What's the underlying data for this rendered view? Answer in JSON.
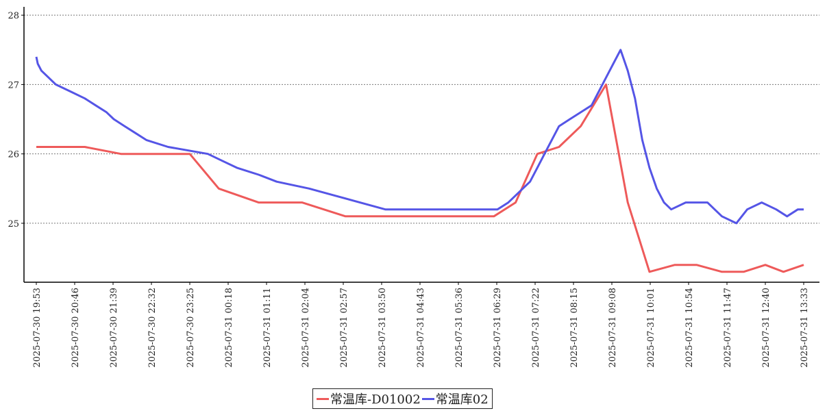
{
  "chart_data": {
    "type": "line",
    "ylim": [
      24.15,
      28.12
    ],
    "yticks": [
      25,
      26,
      27,
      28
    ],
    "grid": "horizontal-dotted",
    "legend_position": "bottom-center",
    "x_tick_labels": [
      "2025-07-30 19:53",
      "2025-07-30 20:46",
      "2025-07-30 21:39",
      "2025-07-30 22:32",
      "2025-07-30 23:25",
      "2025-07-31 00:18",
      "2025-07-31 01:11",
      "2025-07-31 02:04",
      "2025-07-31 02:57",
      "2025-07-31 03:50",
      "2025-07-31 04:43",
      "2025-07-31 05:36",
      "2025-07-31 06:29",
      "2025-07-31 07:22",
      "2025-07-31 08:15",
      "2025-07-31 09:08",
      "2025-07-31 10:01",
      "2025-07-31 10:54",
      "2025-07-31 11:47",
      "2025-07-31 12:40",
      "2025-07-31 13:33"
    ],
    "series": [
      {
        "name": "常温库-D01002",
        "color": "#ee5a5a",
        "points": [
          [
            "2025-07-30 19:53",
            26.1
          ],
          [
            "2025-07-30 21:00",
            26.1
          ],
          [
            "2025-07-30 21:50",
            26.0
          ],
          [
            "2025-07-30 23:25",
            26.0
          ],
          [
            "2025-07-31 00:05",
            25.5
          ],
          [
            "2025-07-31 01:00",
            25.3
          ],
          [
            "2025-07-31 02:00",
            25.3
          ],
          [
            "2025-07-31 03:00",
            25.1
          ],
          [
            "2025-07-31 06:25",
            25.1
          ],
          [
            "2025-07-31 06:55",
            25.3
          ],
          [
            "2025-07-31 07:25",
            26.0
          ],
          [
            "2025-07-31 07:55",
            26.1
          ],
          [
            "2025-07-31 08:25",
            26.4
          ],
          [
            "2025-07-31 09:00",
            27.0
          ],
          [
            "2025-07-31 09:30",
            25.3
          ],
          [
            "2025-07-31 10:00",
            24.3
          ],
          [
            "2025-07-31 10:35",
            24.4
          ],
          [
            "2025-07-31 11:05",
            24.4
          ],
          [
            "2025-07-31 11:40",
            24.3
          ],
          [
            "2025-07-31 12:10",
            24.3
          ],
          [
            "2025-07-31 12:40",
            24.4
          ],
          [
            "2025-07-31 13:05",
            24.3
          ],
          [
            "2025-07-31 13:33",
            24.4
          ]
        ]
      },
      {
        "name": "常温库02",
        "color": "#5555e6",
        "points": [
          [
            "2025-07-30 19:53",
            27.4
          ],
          [
            "2025-07-30 19:55",
            27.3
          ],
          [
            "2025-07-30 20:00",
            27.2
          ],
          [
            "2025-07-30 20:10",
            27.1
          ],
          [
            "2025-07-30 20:20",
            27.0
          ],
          [
            "2025-07-30 20:40",
            26.9
          ],
          [
            "2025-07-30 21:00",
            26.8
          ],
          [
            "2025-07-30 21:15",
            26.7
          ],
          [
            "2025-07-30 21:30",
            26.6
          ],
          [
            "2025-07-30 21:40",
            26.5
          ],
          [
            "2025-07-30 21:55",
            26.4
          ],
          [
            "2025-07-30 22:10",
            26.3
          ],
          [
            "2025-07-30 22:25",
            26.2
          ],
          [
            "2025-07-30 22:55",
            26.1
          ],
          [
            "2025-07-30 23:50",
            26.0
          ],
          [
            "2025-07-31 00:10",
            25.9
          ],
          [
            "2025-07-31 00:30",
            25.8
          ],
          [
            "2025-07-31 01:00",
            25.7
          ],
          [
            "2025-07-31 01:25",
            25.6
          ],
          [
            "2025-07-31 02:10",
            25.5
          ],
          [
            "2025-07-31 02:45",
            25.4
          ],
          [
            "2025-07-31 03:20",
            25.3
          ],
          [
            "2025-07-31 03:55",
            25.2
          ],
          [
            "2025-07-31 06:30",
            25.2
          ],
          [
            "2025-07-31 06:45",
            25.3
          ],
          [
            "2025-07-31 06:55",
            25.4
          ],
          [
            "2025-07-31 07:05",
            25.5
          ],
          [
            "2025-07-31 07:15",
            25.6
          ],
          [
            "2025-07-31 07:25",
            25.8
          ],
          [
            "2025-07-31 07:35",
            26.0
          ],
          [
            "2025-07-31 07:45",
            26.2
          ],
          [
            "2025-07-31 07:55",
            26.4
          ],
          [
            "2025-07-31 08:10",
            26.5
          ],
          [
            "2025-07-31 08:25",
            26.6
          ],
          [
            "2025-07-31 08:40",
            26.7
          ],
          [
            "2025-07-31 08:50",
            26.9
          ],
          [
            "2025-07-31 09:00",
            27.1
          ],
          [
            "2025-07-31 09:10",
            27.3
          ],
          [
            "2025-07-31 09:20",
            27.5
          ],
          [
            "2025-07-31 09:30",
            27.2
          ],
          [
            "2025-07-31 09:40",
            26.8
          ],
          [
            "2025-07-31 09:50",
            26.2
          ],
          [
            "2025-07-31 10:00",
            25.8
          ],
          [
            "2025-07-31 10:10",
            25.5
          ],
          [
            "2025-07-31 10:20",
            25.3
          ],
          [
            "2025-07-31 10:30",
            25.2
          ],
          [
            "2025-07-31 10:50",
            25.3
          ],
          [
            "2025-07-31 11:20",
            25.3
          ],
          [
            "2025-07-31 11:30",
            25.2
          ],
          [
            "2025-07-31 11:40",
            25.1
          ],
          [
            "2025-07-31 12:00",
            25.0
          ],
          [
            "2025-07-31 12:15",
            25.2
          ],
          [
            "2025-07-31 12:35",
            25.3
          ],
          [
            "2025-07-31 12:55",
            25.2
          ],
          [
            "2025-07-31 13:10",
            25.1
          ],
          [
            "2025-07-31 13:25",
            25.2
          ],
          [
            "2025-07-31 13:33",
            25.2
          ]
        ]
      }
    ]
  },
  "legend": {
    "items": [
      {
        "label": "常温库-D01002",
        "color": "#ee5a5a"
      },
      {
        "label": "常温库02",
        "color": "#5555e6"
      }
    ]
  }
}
